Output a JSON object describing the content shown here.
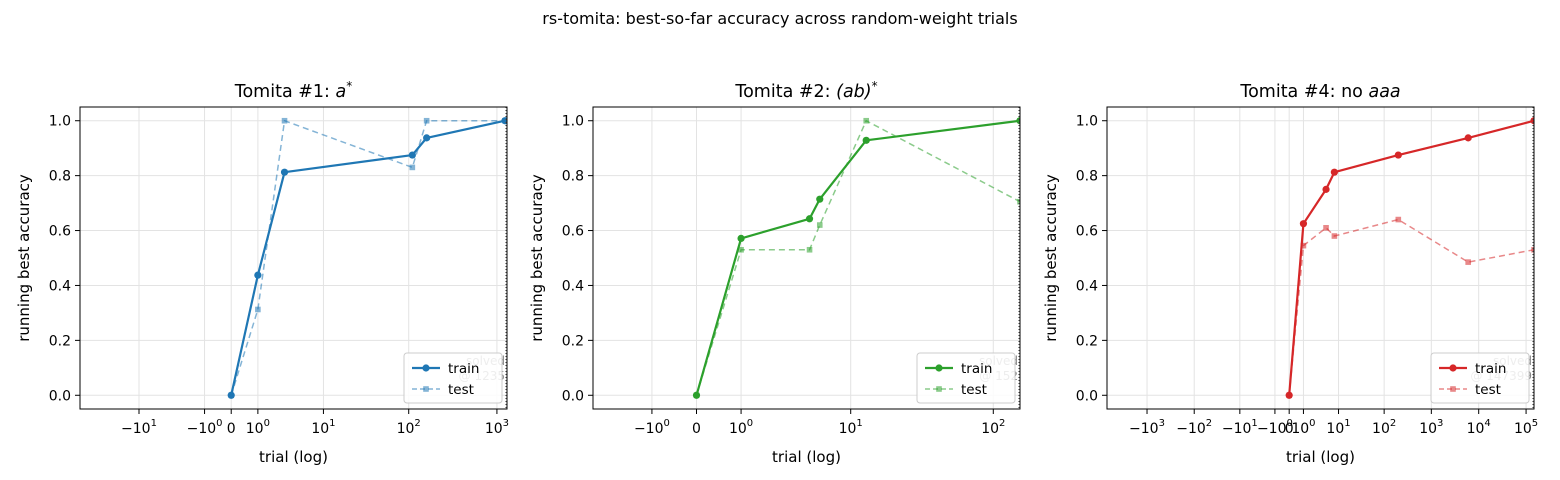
{
  "suptitle": "rs-tomita: best-so-far accuracy across random-weight trials",
  "chart_data": [
    {
      "type": "line",
      "title": "Tomita #1: a*",
      "title_prefix": "Tomita #1: ",
      "title_math": "a",
      "title_sup": "*",
      "xlabel": "trial (log)",
      "ylabel": "running best accuracy",
      "xscale": "symlog",
      "xlim": [
        -50,
        1300
      ],
      "ylim": [
        -0.05,
        1.05
      ],
      "xticks": [
        -10,
        -1,
        0,
        1,
        10,
        100,
        1000
      ],
      "xticklabels": [
        [
          "−10",
          "1"
        ],
        [
          "−10",
          "0"
        ],
        [
          "0",
          ""
        ],
        [
          "10",
          "0"
        ],
        [
          "10",
          "1"
        ],
        [
          "10",
          "2"
        ],
        [
          "10",
          "3"
        ]
      ],
      "yticks": [
        0.0,
        0.2,
        0.4,
        0.6,
        0.8,
        1.0
      ],
      "yticklabels": [
        "0.0",
        "0.2",
        "0.4",
        "0.6",
        "0.8",
        "1.0"
      ],
      "color": "#1f77b4",
      "grid": true,
      "legend_position": "lower right",
      "annotation": [
        "solved",
        "@ 1235"
      ],
      "series": [
        {
          "name": "train",
          "style": "solid",
          "marker": "circle",
          "x": [
            0,
            1,
            3,
            110,
            160,
            1235
          ],
          "y": [
            0.0,
            0.4375,
            0.8125,
            0.875,
            0.9375,
            1.0
          ]
        },
        {
          "name": "test",
          "style": "dashed",
          "marker": "square",
          "x": [
            0,
            1,
            3,
            110,
            160,
            1235
          ],
          "y": [
            0.0,
            0.3125,
            1.0,
            0.83,
            1.0,
            1.0
          ]
        }
      ]
    },
    {
      "type": "line",
      "title": "Tomita #2: (ab)*",
      "title_prefix": "Tomita #2: ",
      "title_math": "(ab)",
      "title_sup": "*",
      "xlabel": "trial (log)",
      "ylabel": "running best accuracy",
      "xscale": "symlog",
      "xlim": [
        -4,
        152
      ],
      "ylim": [
        -0.05,
        1.05
      ],
      "xticks": [
        -1,
        0,
        1,
        10,
        100
      ],
      "xticklabels": [
        [
          "−10",
          "0"
        ],
        [
          "0",
          ""
        ],
        [
          "10",
          "0"
        ],
        [
          "10",
          "1"
        ],
        [
          "10",
          "2"
        ]
      ],
      "yticks": [
        0.0,
        0.2,
        0.4,
        0.6,
        0.8,
        1.0
      ],
      "yticklabels": [
        "0.0",
        "0.2",
        "0.4",
        "0.6",
        "0.8",
        "1.0"
      ],
      "color": "#2ca02c",
      "grid": true,
      "legend_position": "lower right",
      "annotation": [
        "solved",
        "@ 152"
      ],
      "series": [
        {
          "name": "train",
          "style": "solid",
          "marker": "circle",
          "x": [
            0,
            1,
            4.8,
            5.8,
            13,
            152
          ],
          "y": [
            0.0,
            0.5714,
            0.6429,
            0.7143,
            0.9286,
            1.0
          ]
        },
        {
          "name": "test",
          "style": "dashed",
          "marker": "square",
          "x": [
            0,
            1,
            4.8,
            5.8,
            13,
            152
          ],
          "y": [
            0.0,
            0.53,
            0.53,
            0.62,
            1.0,
            0.705
          ]
        }
      ]
    },
    {
      "type": "line",
      "title": "Tomita #4: no aaa",
      "title_prefix": "Tomita #4: no ",
      "title_math": "aaa",
      "title_sup": "",
      "xlabel": "trial (log)",
      "ylabel": "running best accuracy",
      "xscale": "symlog",
      "xlim": [
        -7000,
        147000
      ],
      "ylim": [
        -0.05,
        1.05
      ],
      "xticks": [
        -1000,
        -100,
        -10,
        -1,
        0,
        1,
        10,
        100,
        1000,
        10000,
        100000
      ],
      "xticklabels": [
        [
          "−10",
          "3"
        ],
        [
          "−10",
          "2"
        ],
        [
          "−10",
          "1"
        ],
        [
          "−10",
          "0"
        ],
        [
          "0",
          ""
        ],
        [
          "10",
          "0"
        ],
        [
          "10",
          "1"
        ],
        [
          "10",
          "2"
        ],
        [
          "10",
          "3"
        ],
        [
          "10",
          "4"
        ],
        [
          "10",
          "5"
        ]
      ],
      "yticks": [
        0.0,
        0.2,
        0.4,
        0.6,
        0.8,
        1.0
      ],
      "yticklabels": [
        "0.0",
        "0.2",
        "0.4",
        "0.6",
        "0.8",
        "1.0"
      ],
      "color": "#d62728",
      "grid": true,
      "legend_position": "lower right",
      "annotation": [
        "solved",
        "@ 147399"
      ],
      "series": [
        {
          "name": "train",
          "style": "solid",
          "marker": "circle",
          "x": [
            0,
            1,
            5,
            8,
            200,
            6000,
            147399
          ],
          "y": [
            0.0,
            0.625,
            0.75,
            0.8125,
            0.875,
            0.9375,
            1.0
          ]
        },
        {
          "name": "test",
          "style": "dashed",
          "marker": "square",
          "x": [
            0,
            1,
            5,
            8,
            200,
            6000,
            147399
          ],
          "y": [
            0.0,
            0.545,
            0.61,
            0.58,
            0.64,
            0.485,
            0.53
          ]
        }
      ]
    }
  ]
}
